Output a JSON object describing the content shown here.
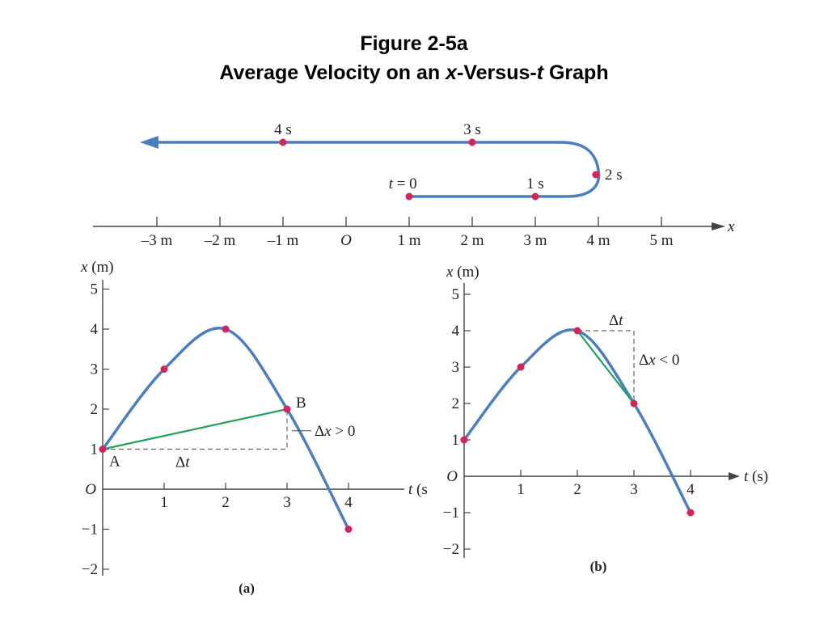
{
  "title": {
    "line1": "Figure 2-5a",
    "line2_pre": "Average Velocity on an ",
    "line2_x": "x",
    "line2_mid": "-Versus-",
    "line2_t": "t",
    "line2_post": " Graph"
  },
  "colors": {
    "curve": "#4a7fbf",
    "point": "#d6245a",
    "secant": "#1aa35a",
    "axis": "#444444",
    "dashed": "#666666"
  },
  "motion_diagram": {
    "axis_label": "x",
    "positions": [
      {
        "x": -3,
        "label": "–3 m"
      },
      {
        "x": -2,
        "label": "–2 m"
      },
      {
        "x": -1,
        "label": "–1 m"
      },
      {
        "x": 0,
        "label": "O"
      },
      {
        "x": 1,
        "label": "1 m"
      },
      {
        "x": 2,
        "label": "2 m"
      },
      {
        "x": 3,
        "label": "3 m"
      },
      {
        "x": 4,
        "label": "4 m"
      },
      {
        "x": 5,
        "label": "5 m"
      }
    ],
    "time_points": [
      {
        "t": 0,
        "x": 1,
        "label": "t = 0"
      },
      {
        "t": 1,
        "x": 3,
        "label": "1 s"
      },
      {
        "t": 2,
        "x": 4,
        "label": "2 s"
      },
      {
        "t": 3,
        "x": 2,
        "label": "3 s"
      },
      {
        "t": 4,
        "x": -1,
        "label": "4 s"
      }
    ]
  },
  "chart_data": [
    {
      "type": "line",
      "caption": "(a)",
      "xlabel": "t (s",
      "ylabel": "x (m)",
      "origin_label": "O",
      "xlim": [
        0,
        5
      ],
      "ylim": [
        -2,
        5.5
      ],
      "xticks": [
        "1",
        "2",
        "3",
        "4"
      ],
      "yticks": [
        "5",
        "4",
        "3",
        "2",
        "1",
        "−1",
        "−2"
      ],
      "points": [
        {
          "t": 0,
          "x": 1
        },
        {
          "t": 1,
          "x": 3
        },
        {
          "t": 2,
          "x": 4
        },
        {
          "t": 3,
          "x": 2
        },
        {
          "t": 4,
          "x": -1
        }
      ],
      "secant": {
        "from": {
          "t": 0,
          "x": 1
        },
        "to": {
          "t": 3,
          "x": 2
        }
      },
      "annotations": {
        "A": "A",
        "B": "B",
        "dt": "Δt",
        "dx": "Δx > 0"
      }
    },
    {
      "type": "line",
      "caption": "(b)",
      "xlabel": "t (s)",
      "ylabel": "x (m)",
      "origin_label": "O",
      "xlim": [
        0,
        5
      ],
      "ylim": [
        -2,
        5.5
      ],
      "xticks": [
        "1",
        "2",
        "3",
        "4"
      ],
      "yticks": [
        "5",
        "4",
        "3",
        "2",
        "1",
        "−1",
        "−2"
      ],
      "points": [
        {
          "t": 0,
          "x": 1
        },
        {
          "t": 1,
          "x": 3
        },
        {
          "t": 2,
          "x": 4
        },
        {
          "t": 3,
          "x": 2
        },
        {
          "t": 4,
          "x": -1
        }
      ],
      "secant": {
        "from": {
          "t": 2,
          "x": 4
        },
        "to": {
          "t": 3,
          "x": 2
        }
      },
      "annotations": {
        "dt": "Δt",
        "dx": "Δx < 0"
      }
    }
  ]
}
